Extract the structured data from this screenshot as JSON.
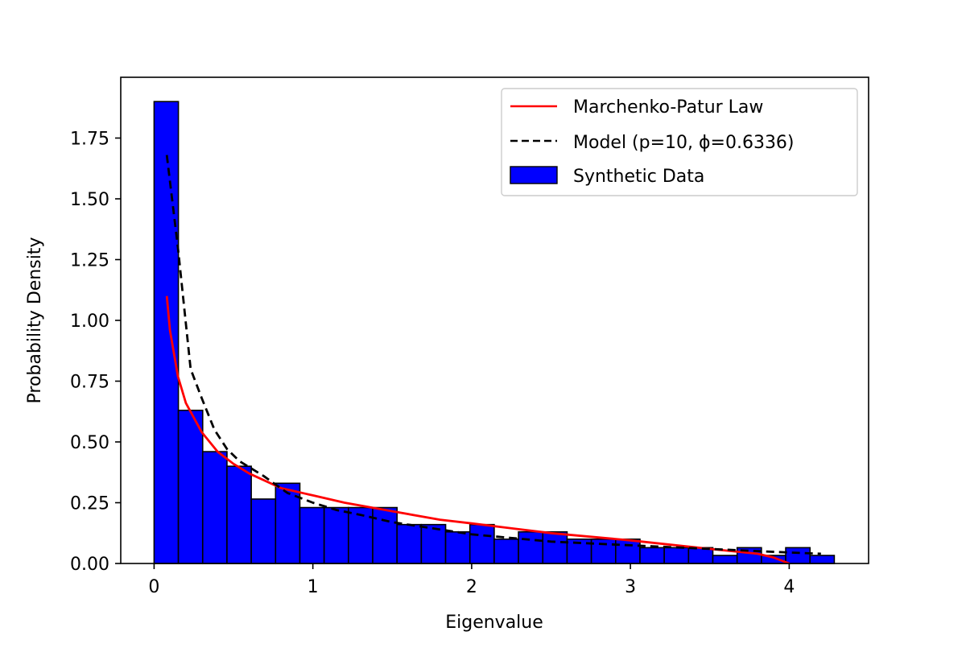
{
  "chart_data": {
    "type": "bar",
    "title": "",
    "xlabel": "Eigenvalue",
    "ylabel": "Probability Density",
    "xlim": [
      -0.21,
      4.5
    ],
    "ylim": [
      0,
      2.0
    ],
    "xticks": [
      0,
      1,
      2,
      3,
      4
    ],
    "xtick_labels": [
      "0",
      "1",
      "2",
      "3",
      "4"
    ],
    "yticks": [
      0,
      0.25,
      0.5,
      0.75,
      1.0,
      1.25,
      1.5,
      1.75
    ],
    "ytick_labels": [
      "0.00",
      "0.25",
      "0.50",
      "0.75",
      "1.00",
      "1.25",
      "1.50",
      "1.75"
    ],
    "grid": false,
    "legend_position": "top-right",
    "histogram": {
      "name": "Synthetic Data",
      "color": "#0000ff",
      "edgecolor": "#000000",
      "bin_edges": [
        0.0,
        0.153,
        0.306,
        0.459,
        0.612,
        0.765,
        0.918,
        1.071,
        1.224,
        1.377,
        1.53,
        1.683,
        1.836,
        1.989,
        2.142,
        2.295,
        2.448,
        2.601,
        2.754,
        2.907,
        3.06,
        3.213,
        3.366,
        3.519,
        3.672,
        3.825,
        3.978,
        4.131,
        4.284
      ],
      "values": [
        1.9,
        0.63,
        0.46,
        0.4,
        0.265,
        0.33,
        0.23,
        0.23,
        0.23,
        0.23,
        0.16,
        0.16,
        0.13,
        0.16,
        0.1,
        0.13,
        0.13,
        0.1,
        0.1,
        0.1,
        0.065,
        0.065,
        0.065,
        0.033,
        0.065,
        0.033,
        0.065,
        0.033
      ]
    },
    "series": [
      {
        "name": "Marchenko-Patur Law",
        "color": "#ff0000",
        "style": "solid",
        "x": [
          0.08,
          0.1,
          0.15,
          0.2,
          0.3,
          0.4,
          0.5,
          0.6,
          0.8,
          1.0,
          1.2,
          1.5,
          1.8,
          2.0,
          2.5,
          3.0,
          3.5,
          3.8,
          3.9,
          4.0
        ],
        "y": [
          1.1,
          0.96,
          0.77,
          0.66,
          0.54,
          0.46,
          0.41,
          0.37,
          0.31,
          0.28,
          0.25,
          0.215,
          0.18,
          0.165,
          0.125,
          0.095,
          0.06,
          0.04,
          0.025,
          0.0
        ]
      },
      {
        "name": "Model (p=10, ϕ=0.6336)",
        "color": "#000000",
        "style": "dashed",
        "x": [
          0.08,
          0.15,
          0.23,
          0.3,
          0.38,
          0.46,
          0.54,
          0.69,
          0.84,
          1.0,
          1.15,
          1.3,
          1.5,
          1.8,
          2.0,
          2.5,
          3.0,
          3.5,
          4.0,
          4.2
        ],
        "y": [
          1.68,
          1.3,
          0.8,
          0.68,
          0.55,
          0.47,
          0.42,
          0.36,
          0.29,
          0.25,
          0.22,
          0.2,
          0.17,
          0.14,
          0.12,
          0.09,
          0.075,
          0.06,
          0.045,
          0.04
        ]
      }
    ]
  }
}
